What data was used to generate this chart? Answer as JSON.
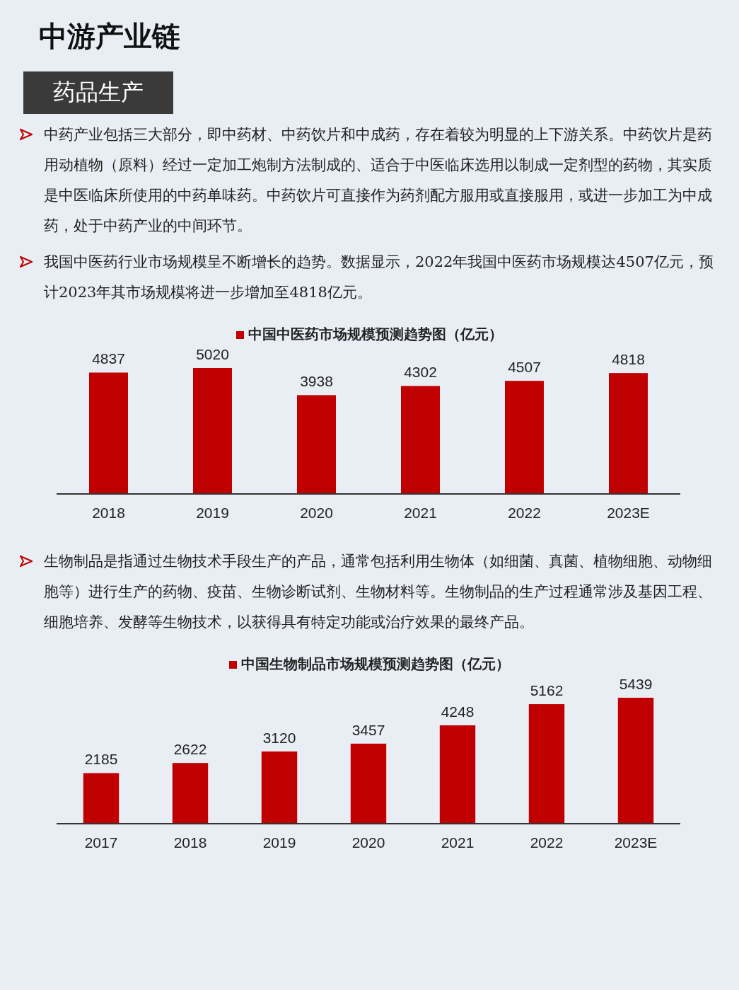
{
  "chart_data": [
    {
      "type": "bar",
      "title": "中游产业链",
      "subtitle": "药品生产",
      "annotations": [
        "中药产业包括三大部分，即中药材、中药饮片和中成药，存在着较为明显的上下游关系。中药饮片是药用动植物（原料）经过一定加工炮制方法制成的、适合于中医临床选用以制成一定剂型的药物，其实质是中医临床所使用的中药单味药。中药饮片可直接作为药剂配方服用或直接服用，或进一步加工为中成药，处于中药产业的中间环节。",
        "我国中医药行业市场规模呈不断增长的趋势。数据显示，2022年我国中医药市场规模达4507亿元，预计2023年其市场规模将进一步增加至4818亿元。"
      ],
      "categories": [
        "2018",
        "2019",
        "2020",
        "2021",
        "2022",
        "2023E"
      ],
      "series": [
        {
          "name": "中国中医药市场规模预测趋势图（亿元）",
          "color": "#c00000",
          "values": [
            4837,
            5020,
            3938,
            4302,
            4507,
            4818
          ]
        }
      ],
      "data_labels": true,
      "legend": "top"
    },
    {
      "type": "bar",
      "annotations": [
        "生物制品是指通过生物技术手段生产的产品，通常包括利用生物体（如细菌、真菌、植物细胞、动物细胞等）进行生产的药物、疫苗、生物诊断试剂、生物材料等。生物制品的生产过程通常涉及基因工程、细胞培养、发酵等生物技术，以获得具有特定功能或治疗效果的最终产品。"
      ],
      "categories": [
        "2017",
        "2018",
        "2019",
        "2020",
        "2021",
        "2022",
        "2023E"
      ],
      "series": [
        {
          "name": "中国生物制品市场规模预测趋势图（亿元）",
          "color": "#c00000",
          "values": [
            2185,
            2622,
            3120,
            3457,
            4248,
            5162,
            5439
          ]
        }
      ],
      "data_labels": true,
      "legend": "top"
    }
  ]
}
